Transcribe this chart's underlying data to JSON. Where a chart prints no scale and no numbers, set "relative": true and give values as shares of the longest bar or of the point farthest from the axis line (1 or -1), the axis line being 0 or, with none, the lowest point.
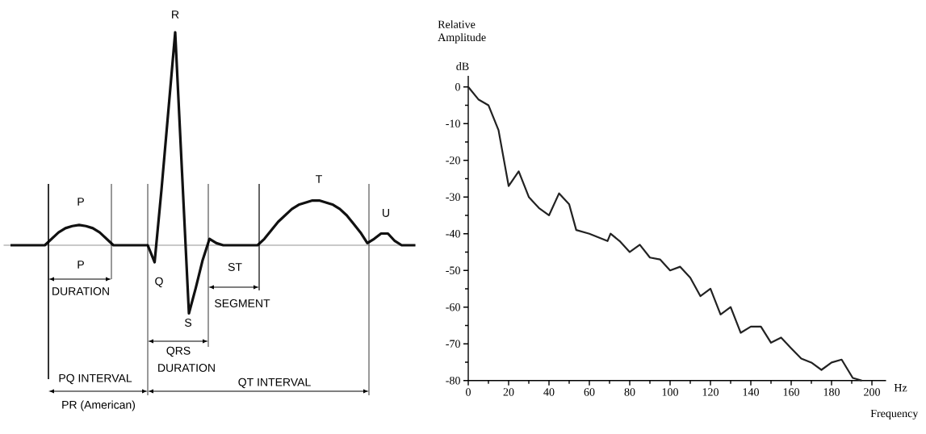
{
  "chart_data": [
    {
      "type": "line",
      "relative": true,
      "color": "#111111",
      "marker": "none",
      "line_style": "solid",
      "categories": [
        null,
        null,
        null,
        null,
        null,
        null,
        null,
        null,
        null,
        null,
        null,
        null,
        null,
        null,
        null,
        null,
        null,
        null,
        null,
        null,
        null,
        null,
        null,
        null,
        null,
        null,
        null,
        null,
        null,
        null,
        null,
        null,
        null,
        null,
        null,
        null,
        null,
        null,
        null,
        null,
        null,
        null,
        null,
        null,
        null,
        null,
        null,
        null,
        null,
        null,
        null,
        null,
        null,
        null,
        null,
        null,
        null,
        null,
        null,
        null
      ],
      "values": [
        0,
        0,
        0,
        0,
        0,
        0,
        0.03,
        0.06,
        0.08,
        0.09,
        0.095,
        0.09,
        0.08,
        0.06,
        0.03,
        0,
        0,
        0,
        0,
        0,
        0,
        -0.08,
        0.26,
        0.63,
        1,
        0.34,
        -0.32,
        -0.2,
        -0.07,
        0.03,
        0.01,
        0,
        0,
        0,
        0,
        0,
        0,
        0.03,
        0.07,
        0.11,
        0.14,
        0.17,
        0.19,
        0.2,
        0.21,
        0.21,
        0.2,
        0.19,
        0.17,
        0.14,
        0.1,
        0.06,
        0.01,
        0.03,
        0.055,
        0.055,
        0.02,
        0,
        0,
        0
      ],
      "annotations": [
        "R",
        "P",
        "T",
        "U",
        "Q",
        "S",
        "P",
        "DURATION",
        "ST",
        "SEGMENT",
        "QRS",
        "DURATION",
        "PQ INTERVAL",
        "QT INTERVAL",
        "PR (American)"
      ]
    },
    {
      "type": "line",
      "color": "#222222",
      "marker": "none",
      "line_style": "solid",
      "ylabel": "Relative Amplitude",
      "xlabel": "Frequency",
      "annotations": [
        "dB",
        "Hz"
      ],
      "x": [
        0,
        5,
        10,
        15,
        20,
        25,
        30,
        35,
        40,
        45,
        50,
        53.5,
        60,
        69,
        70.5,
        75,
        80,
        85,
        90,
        95,
        100,
        105,
        110,
        115,
        120,
        125,
        130,
        135,
        140,
        145,
        150,
        155,
        160,
        165,
        170,
        175,
        180,
        185,
        190.5,
        195
      ],
      "values": [
        0,
        -3.4,
        -5,
        -11.8,
        -27,
        -23,
        -30,
        -33,
        -35,
        -29,
        -32,
        -39,
        -40,
        -42,
        -40,
        -42,
        -45,
        -43,
        -46.5,
        -47,
        -50,
        -49,
        -52,
        -57,
        -55,
        -62,
        -60,
        -67,
        -65.3,
        -65.3,
        -69.7,
        -68.3,
        -71.2,
        -74,
        -75.1,
        -77.1,
        -75.1,
        -74.3,
        -79.3,
        -80
      ],
      "xlim": [
        0,
        207
      ],
      "ylim": [
        -80,
        3
      ],
      "xticks": [
        0,
        20,
        40,
        60,
        80,
        100,
        120,
        140,
        160,
        180,
        200
      ],
      "yticks": [
        -80,
        -70,
        -60,
        -50,
        -40,
        -30,
        -20,
        -10,
        0
      ]
    }
  ]
}
